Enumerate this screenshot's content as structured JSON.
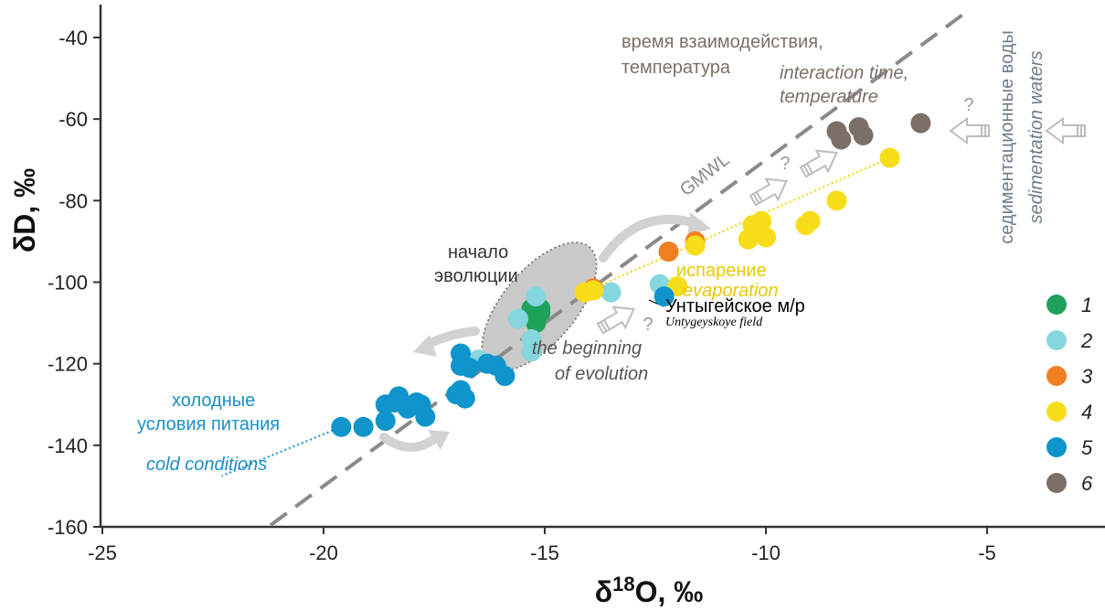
{
  "chart_data": {
    "type": "scatter",
    "xlabel": {
      "main": "δ",
      "sup": "18",
      "rest": "O, ‰"
    },
    "ylabel": "δD, ‰",
    "xlim": [
      -25,
      -2.5
    ],
    "ylim": [
      -160,
      -33
    ],
    "x_ticks": [
      -25,
      -20,
      -15,
      -10,
      -5
    ],
    "y_ticks": [
      -40,
      -60,
      -80,
      -100,
      -120,
      -140,
      -160
    ],
    "x_tick_labels": [
      "-25",
      "-20",
      "-15",
      "-10",
      "-5"
    ],
    "y_tick_labels": [
      "-40",
      "-60",
      "-80",
      "-100",
      "-120",
      "-140",
      "-160"
    ],
    "grid": false,
    "legend_position": "right",
    "series": [
      {
        "name": "1",
        "color": "#1fa15a",
        "points": [
          [
            -15.3,
            -106.5
          ],
          [
            -15.1,
            -106.5
          ],
          [
            -15.2,
            -110
          ],
          [
            -15.1,
            -107.5
          ]
        ]
      },
      {
        "name": "2",
        "color": "#86d6de",
        "points": [
          [
            -15.2,
            -103.5
          ],
          [
            -13.5,
            -102.5
          ],
          [
            -15.6,
            -109
          ],
          [
            -15.3,
            -114
          ],
          [
            -15.3,
            -117
          ],
          [
            -16.5,
            -119
          ],
          [
            -12.4,
            -100.5
          ]
        ]
      },
      {
        "name": "3",
        "color": "#f07f22",
        "points": [
          [
            -13.9,
            -101.5
          ],
          [
            -12.2,
            -92.5
          ],
          [
            -11.6,
            -90
          ]
        ]
      },
      {
        "name": "4",
        "color": "#f7dc1a",
        "points": [
          [
            -14.1,
            -102.5
          ],
          [
            -13.9,
            -102
          ],
          [
            -12.0,
            -101
          ],
          [
            -11.6,
            -91
          ],
          [
            -10.4,
            -89.5
          ],
          [
            -10.3,
            -86
          ],
          [
            -10.1,
            -85
          ],
          [
            -10.0,
            -89
          ],
          [
            -9.1,
            -86
          ],
          [
            -9.0,
            -85
          ],
          [
            -8.4,
            -80
          ],
          [
            -7.2,
            -69.5
          ]
        ]
      },
      {
        "name": "5",
        "color": "#0f94cb",
        "points": [
          [
            -12.3,
            -103.5
          ],
          [
            -16.9,
            -117.5
          ],
          [
            -16.7,
            -121
          ],
          [
            -16.9,
            -120.5
          ],
          [
            -16.3,
            -120
          ],
          [
            -16.1,
            -120.5
          ],
          [
            -15.9,
            -123
          ],
          [
            -16.9,
            -126.5
          ],
          [
            -17.0,
            -127.5
          ],
          [
            -16.8,
            -128.5
          ],
          [
            -17.8,
            -130
          ],
          [
            -17.7,
            -133
          ],
          [
            -17.9,
            -129.5
          ],
          [
            -18.3,
            -128
          ],
          [
            -18.1,
            -131
          ],
          [
            -18.4,
            -129.5
          ],
          [
            -18.6,
            -130
          ],
          [
            -18.6,
            -134
          ],
          [
            -19.1,
            -135.5
          ],
          [
            -19.6,
            -135.5
          ]
        ]
      },
      {
        "name": "6",
        "color": "#7b6f67",
        "points": [
          [
            -8.4,
            -63
          ],
          [
            -8.3,
            -65
          ],
          [
            -7.9,
            -62
          ],
          [
            -7.8,
            -64
          ],
          [
            -6.5,
            -61
          ]
        ]
      }
    ],
    "lines": [
      {
        "name": "GMWL",
        "label": "GMWL",
        "type": "dashed",
        "color": "#8a8a8a",
        "slope": 8,
        "intercept": 10
      },
      {
        "name": "evaporation-trend",
        "type": "dotted",
        "color": "#f0d400",
        "from": [
          -14.1,
          -102.5
        ],
        "to": [
          -7.2,
          -69.5
        ]
      },
      {
        "name": "cold-trend",
        "type": "dotted",
        "color": "#1a8fc7",
        "from": [
          -19.6,
          -135.5
        ],
        "to": [
          -22.3,
          -147.5
        ]
      }
    ],
    "annotations": {
      "interaction_ru": [
        "время взаимодействия,",
        "температура"
      ],
      "interaction_en": [
        "interaction time,",
        "temperature"
      ],
      "start_ru": [
        "начало",
        "эволюции"
      ],
      "start_en": [
        "the beginning",
        "of evolution"
      ],
      "evap_ru": "испарение",
      "evap_en": "evaporation",
      "cold_ru": [
        "холодные",
        "условия питания"
      ],
      "cold_en": "cold conditions",
      "field_ru": "Унтыгейское м/р",
      "field_en": "Untygeyskoye field",
      "sed_ru": "седиментационные воды",
      "sed_en": "sedimentation waters",
      "question": "?"
    }
  }
}
